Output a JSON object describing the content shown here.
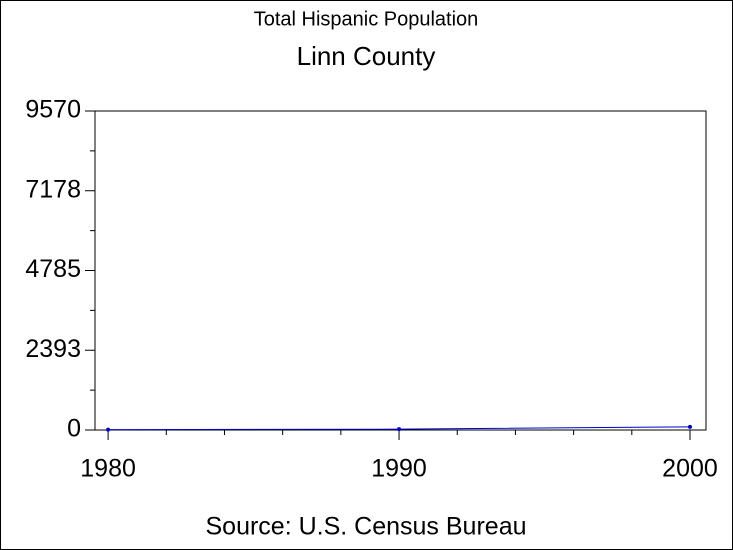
{
  "chart_data": {
    "type": "line",
    "title": "Total Hispanic Population",
    "subtitle": "Linn County",
    "caption": "Source: U.S. Census Bureau",
    "x": [
      1980,
      1990,
      2000
    ],
    "series": [
      {
        "color": "#0000cc",
        "values": [
          10,
          25,
          95
        ]
      }
    ],
    "xlim": [
      1979.55,
      2000.55
    ],
    "xticks": [
      1980,
      1990,
      2000
    ],
    "ylim": [
      0,
      9570
    ],
    "yticks": [
      0,
      2393,
      4785,
      7178,
      9570
    ]
  }
}
